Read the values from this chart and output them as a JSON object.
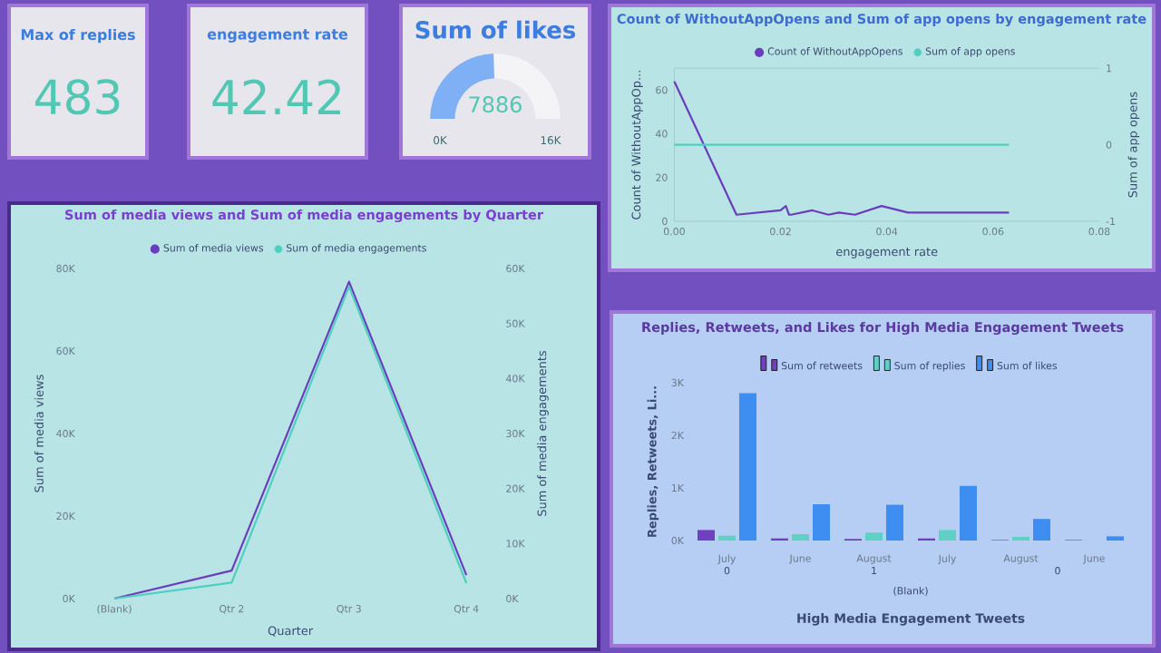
{
  "chart_data": [
    {
      "type": "other",
      "title": "Max of replies",
      "annotations": [
        "483"
      ]
    },
    {
      "type": "other",
      "title": "engagement rate",
      "annotations": [
        "42.42"
      ]
    },
    {
      "type": "donut",
      "title": "Sum of likes",
      "categories": [
        null,
        null
      ],
      "values": [
        49.3,
        50.7
      ],
      "colors": [
        "#7fb0f5",
        "#f4f4f6"
      ],
      "annotations": [
        "7886",
        "0K",
        "16K"
      ]
    },
    {
      "type": "line",
      "title": "Count of WithoutAppOpens and Sum of app opens by engagement rate",
      "xlabel": "engagement rate",
      "ylabel": "Count of WithoutAppOp...",
      "y2label": "Sum of app opens",
      "xlim": [
        0,
        0.08
      ],
      "xticks": [
        {
          "value": 0,
          "label": "0.00"
        },
        {
          "value": 0.02,
          "label": "0.02"
        },
        {
          "value": 0.04,
          "label": "0.04"
        },
        {
          "value": 0.06,
          "label": "0.06"
        },
        {
          "value": 0.08,
          "label": "0.08"
        }
      ],
      "ylim": [
        0,
        70
      ],
      "yticks": [
        0,
        20,
        40,
        60
      ],
      "y2lim": [
        -1,
        1
      ],
      "y2ticks": [
        -1,
        0,
        1
      ],
      "legend": "top",
      "series": [
        {
          "name": "Count of WithoutAppOpens",
          "color": "#6a3dbd",
          "x": [
            0,
            0.0117,
            0.02,
            0.021,
            0.0216,
            0.022,
            0.026,
            0.029,
            0.031,
            0.034,
            0.039,
            0.044,
            0.063
          ],
          "values": [
            64,
            3,
            5,
            7,
            3,
            3,
            5,
            3,
            4,
            3,
            7,
            4,
            4
          ]
        },
        {
          "name": "Sum of app opens",
          "color": "#4fcfbf",
          "axis": "y2",
          "x": [
            0,
            0.063
          ],
          "values": [
            0,
            0
          ]
        }
      ]
    },
    {
      "type": "line",
      "title": "Sum of media views and Sum of media engagements by Quarter",
      "xlabel": "Quarter",
      "ylabel": "Sum of media views",
      "y2label": "Sum of media engagements",
      "categories": [
        "(Blank)",
        "Qtr 2",
        "Qtr 3",
        "Qtr 4"
      ],
      "ylim": [
        0,
        80000
      ],
      "yticks": [
        {
          "value": 0,
          "label": "0K"
        },
        {
          "value": 20000,
          "label": "20K"
        },
        {
          "value": 40000,
          "label": "40K"
        },
        {
          "value": 60000,
          "label": "60K"
        },
        {
          "value": 80000,
          "label": "80K"
        }
      ],
      "y2lim": [
        0,
        60000
      ],
      "y2ticks": [
        {
          "value": 0,
          "label": "0K"
        },
        {
          "value": 10000,
          "label": "10K"
        },
        {
          "value": 20000,
          "label": "20K"
        },
        {
          "value": 30000,
          "label": "30K"
        },
        {
          "value": 40000,
          "label": "40K"
        },
        {
          "value": 50000,
          "label": "50K"
        },
        {
          "value": 60000,
          "label": "60K"
        }
      ],
      "legend": "top",
      "series": [
        {
          "name": "Sum of media views",
          "color": "#6a3dbd",
          "values": [
            0,
            6800,
            76800,
            5700
          ]
        },
        {
          "name": "Sum of media engagements",
          "color": "#4fcfbf",
          "axis": "y2",
          "values": [
            0,
            2900,
            56700,
            2800
          ]
        }
      ]
    },
    {
      "type": "bar",
      "title": "Replies, Retweets, and Likes for High Media Engagement Tweets",
      "xlabel": "High Media Engagement Tweets",
      "ylabel": "Replies, Retweets, Li...",
      "categories": [
        "July",
        "June",
        "August",
        "July",
        "August",
        "June"
      ],
      "annotations": [
        "0",
        "1",
        "0",
        "(Blank)"
      ],
      "ylim": [
        0,
        3000
      ],
      "yticks": [
        {
          "value": 0,
          "label": "0K"
        },
        {
          "value": 1000,
          "label": "1K"
        },
        {
          "value": 2000,
          "label": "2K"
        },
        {
          "value": 3000,
          "label": "3K"
        }
      ],
      "legend": "top",
      "series": [
        {
          "name": "Sum of retweets",
          "color": "#7040c0",
          "values": [
            200,
            40,
            30,
            40,
            10,
            10
          ]
        },
        {
          "name": "Sum of replies",
          "color": "#5ed1c4",
          "values": [
            90,
            120,
            150,
            200,
            70,
            null
          ]
        },
        {
          "name": "Sum of likes",
          "color": "#3d8ef0",
          "values": [
            2800,
            690,
            680,
            1040,
            410,
            80
          ]
        }
      ]
    }
  ]
}
